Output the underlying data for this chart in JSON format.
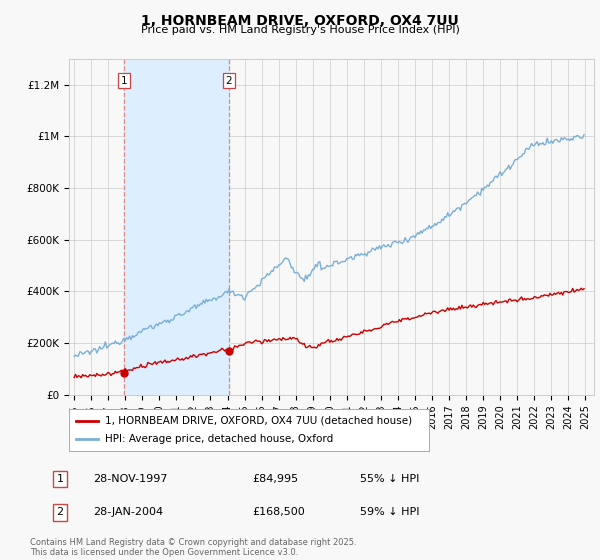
{
  "title": "1, HORNBEAM DRIVE, OXFORD, OX4 7UU",
  "subtitle": "Price paid vs. HM Land Registry's House Price Index (HPI)",
  "ylabel_ticks": [
    "£0",
    "£200K",
    "£400K",
    "£600K",
    "£800K",
    "£1M",
    "£1.2M"
  ],
  "ytick_values": [
    0,
    200000,
    400000,
    600000,
    800000,
    1000000,
    1200000
  ],
  "ylim": [
    0,
    1300000
  ],
  "xlim_start": 1994.7,
  "xlim_end": 2025.5,
  "sale1_x": 1997.91,
  "sale1_y": 84995,
  "sale2_x": 2004.08,
  "sale2_y": 168500,
  "sale1_label": "1",
  "sale2_label": "2",
  "legend_line1": "1, HORNBEAM DRIVE, OXFORD, OX4 7UU (detached house)",
  "legend_line2": "HPI: Average price, detached house, Oxford",
  "table_row1": [
    "1",
    "28-NOV-1997",
    "£84,995",
    "55% ↓ HPI"
  ],
  "table_row2": [
    "2",
    "28-JAN-2004",
    "£168,500",
    "59% ↓ HPI"
  ],
  "footnote": "Contains HM Land Registry data © Crown copyright and database right 2025.\nThis data is licensed under the Open Government Licence v3.0.",
  "red_color": "#cc0000",
  "blue_color": "#7ab0d4",
  "shaded_color": "#ddeeff",
  "background_color": "#f8f8f8",
  "grid_color": "#cccccc",
  "vline_color": "#dd8888"
}
